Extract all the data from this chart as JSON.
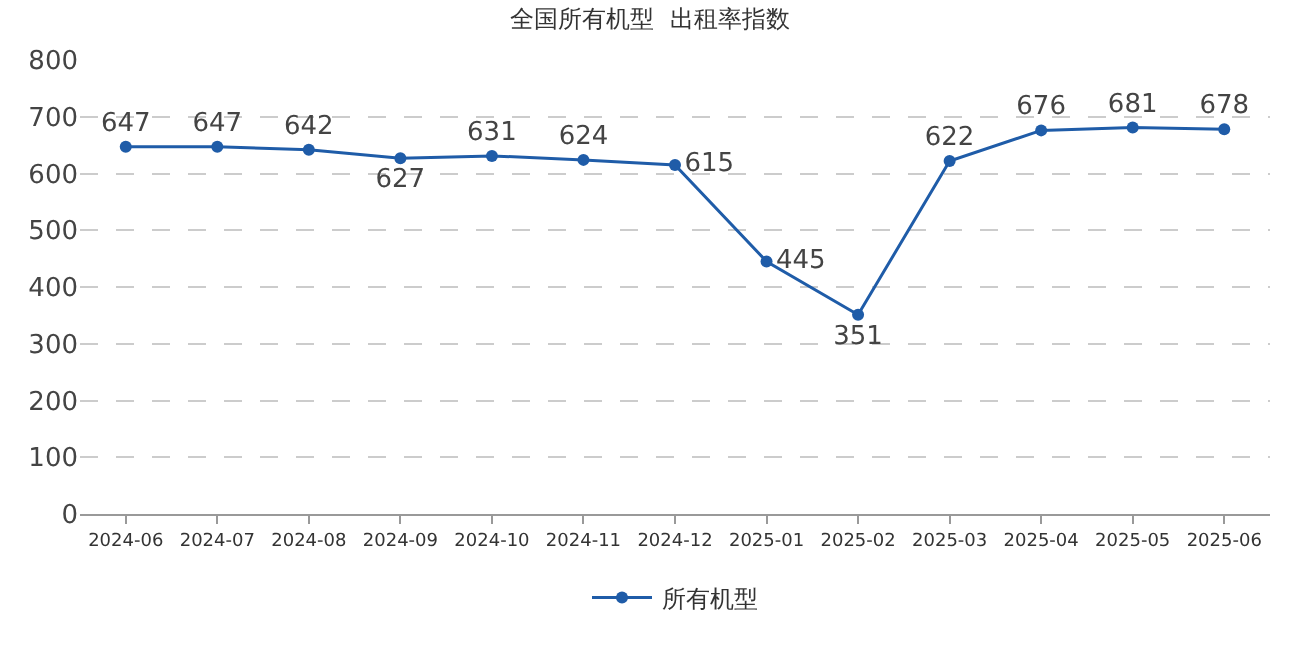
{
  "chart_data": {
    "type": "line",
    "title": "全国所有机型  出租率指数",
    "categories": [
      "2024-06",
      "2024-07",
      "2024-08",
      "2024-09",
      "2024-10",
      "2024-11",
      "2024-12",
      "2025-01",
      "2025-02",
      "2025-03",
      "2025-04",
      "2025-05",
      "2025-06"
    ],
    "series": [
      {
        "name": "所有机型",
        "color": "#1f5ca8",
        "values": [
          647,
          647,
          642,
          627,
          631,
          624,
          615,
          445,
          351,
          622,
          676,
          681,
          678
        ]
      }
    ],
    "ylim": [
      0,
      800
    ],
    "yticks": [
      0,
      100,
      200,
      300,
      400,
      500,
      600,
      700,
      800
    ],
    "grid": "y",
    "legend": "bottom",
    "marker": "circle",
    "line_style": "solid",
    "data_labels": true
  }
}
